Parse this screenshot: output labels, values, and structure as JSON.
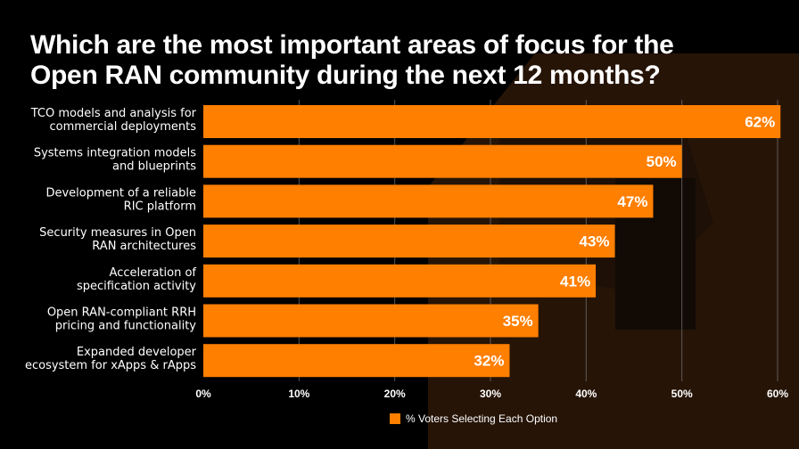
{
  "colors": {
    "background": "#000000",
    "bar": "#FF7F00",
    "text": "#FFFFFF",
    "grid": "#7A7A7A"
  },
  "chart_data": {
    "type": "bar",
    "orientation": "horizontal",
    "title": "Which are the most important areas of focus for the Open RAN community during the next 12 months?",
    "title_lines": [
      "Which are the most important areas of focus for the",
      "Open RAN community during the next 12 months?"
    ],
    "categories": [
      [
        "TCO models and analysis for",
        "commercial deployments"
      ],
      [
        "Systems integration models",
        "and blueprints"
      ],
      [
        "Development of a reliable",
        "RIC platform"
      ],
      [
        "Security measures in Open",
        "RAN architectures"
      ],
      [
        "Acceleration of",
        "specification activity"
      ],
      [
        "Open RAN-compliant RRH",
        "pricing and functionality"
      ],
      [
        "Expanded developer",
        "ecosystem for xApps & rApps"
      ]
    ],
    "series": [
      {
        "name": "% Voters Selecting Each Option",
        "values": [
          62,
          50,
          47,
          43,
          41,
          35,
          32
        ],
        "labels": [
          "62%",
          "50%",
          "47%",
          "43%",
          "41%",
          "35%",
          "32%"
        ]
      }
    ],
    "xlim": [
      0,
      60
    ],
    "ticks": [
      0,
      10,
      20,
      30,
      40,
      50,
      60
    ],
    "tick_labels": [
      "0%",
      "10%",
      "20%",
      "30%",
      "40%",
      "50%",
      "60%"
    ],
    "grid": true,
    "legend": "bottom-center",
    "xlabel": "",
    "ylabel": ""
  }
}
